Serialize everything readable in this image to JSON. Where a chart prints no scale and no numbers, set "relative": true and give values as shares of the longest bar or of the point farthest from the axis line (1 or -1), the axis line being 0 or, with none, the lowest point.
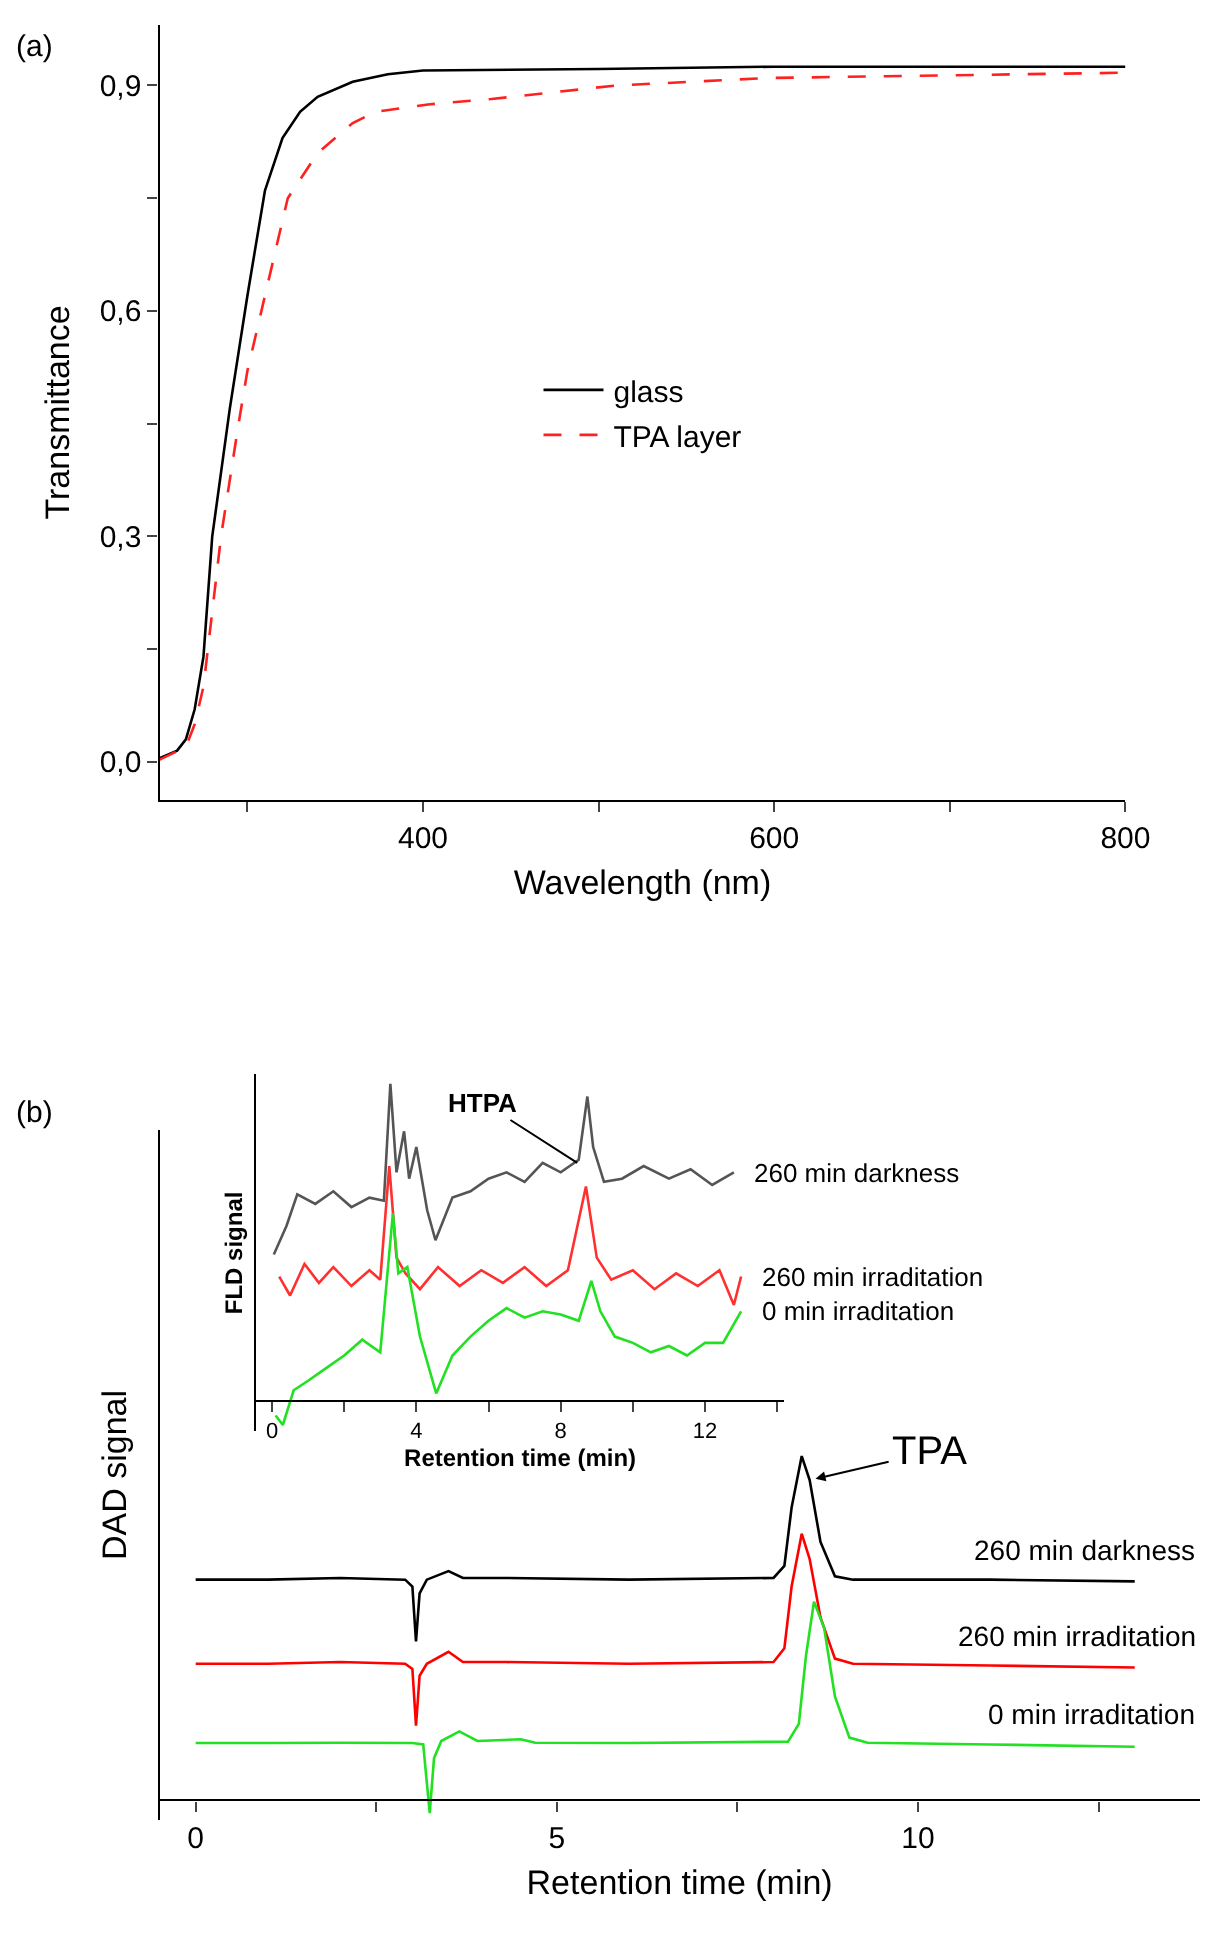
{
  "chart_data": [
    {
      "type": "line",
      "xlabel": "Wavelength (nm)",
      "ylabel": "Transmittance",
      "annotations": [
        "(a)"
      ],
      "xlim": [
        250,
        800
      ],
      "xticks": [
        {
          "value": 300,
          "label": null
        },
        400,
        {
          "value": 500,
          "label": null
        },
        600,
        {
          "value": 700,
          "label": null
        },
        800
      ],
      "ylim": [
        -0.05,
        0.98
      ],
      "yticks": [
        {
          "value": 0,
          "label": "0,0"
        },
        {
          "value": 0.15,
          "label": null
        },
        {
          "value": 0.3,
          "label": "0,3"
        },
        {
          "value": 0.45,
          "label": null
        },
        {
          "value": 0.6,
          "label": "0,6"
        },
        {
          "value": 0.75,
          "label": null
        },
        {
          "value": 0.9,
          "label": "0,9"
        }
      ],
      "legend": "center",
      "series": [
        {
          "name": "glass",
          "color": "#000000",
          "line_style": "solid",
          "x": [
            250,
            260,
            265,
            270,
            275,
            280,
            290,
            300,
            310,
            320,
            330,
            340,
            360,
            380,
            400,
            500,
            600,
            800
          ],
          "values": [
            0.005,
            0.015,
            0.03,
            0.07,
            0.14,
            0.3,
            0.47,
            0.62,
            0.76,
            0.83,
            0.865,
            0.885,
            0.905,
            0.915,
            0.92,
            0.922,
            0.925,
            0.925
          ]
        },
        {
          "name": "TPA layer",
          "color": "#ff2020",
          "line_style": "dashed",
          "x": [
            250,
            265,
            270,
            275,
            280,
            285,
            295,
            300,
            310,
            323,
            340,
            360,
            373,
            404,
            439,
            510,
            597,
            800
          ],
          "values": [
            0.003,
            0.02,
            0.05,
            0.1,
            0.2,
            0.3,
            0.45,
            0.52,
            0.62,
            0.75,
            0.81,
            0.85,
            0.865,
            0.875,
            0.882,
            0.9,
            0.91,
            0.917
          ]
        }
      ]
    },
    {
      "type": "line",
      "relative": true,
      "xlabel": "Retention time (min)",
      "ylabel": "DAD signal",
      "tick_labels": "x",
      "annotations": [
        "(b)",
        {
          "text": "TPA",
          "x": 8.5,
          "y": 0.93
        }
      ],
      "xlim": [
        -0.5,
        13.9
      ],
      "xticks": [
        0,
        {
          "value": 2.5,
          "label": null
        },
        5,
        {
          "value": 7.5,
          "label": null
        },
        10,
        {
          "value": 12.5,
          "label": null
        }
      ],
      "series": [
        {
          "name": "260 min darkness",
          "color": "#000000",
          "x": [
            0,
            1,
            2,
            2.9,
            3.0,
            3.05,
            3.1,
            3.2,
            3.5,
            3.7,
            4.3,
            6,
            8.0,
            8.15,
            8.25,
            8.39,
            8.5,
            8.65,
            8.85,
            9.1,
            11,
            13
          ],
          "values": [
            0.64,
            0.64,
            0.645,
            0.64,
            0.62,
            0.46,
            0.6,
            0.64,
            0.665,
            0.645,
            0.645,
            0.64,
            0.645,
            0.68,
            0.85,
            1.0,
            0.93,
            0.75,
            0.65,
            0.64,
            0.64,
            0.635
          ]
        },
        {
          "name": "260 min irraditation",
          "color": "#ff0000",
          "x": [
            0,
            1,
            2,
            2.9,
            3.0,
            3.05,
            3.1,
            3.2,
            3.5,
            3.7,
            4.3,
            6,
            8.0,
            8.15,
            8.25,
            8.39,
            8.5,
            8.65,
            8.85,
            9.1,
            11,
            13
          ],
          "values": [
            0.395,
            0.395,
            0.4,
            0.395,
            0.38,
            0.215,
            0.36,
            0.395,
            0.43,
            0.4,
            0.4,
            0.395,
            0.4,
            0.44,
            0.62,
            0.774,
            0.7,
            0.53,
            0.41,
            0.395,
            0.39,
            0.384
          ]
        },
        {
          "name": "0 min irraditation",
          "color": "#22e022",
          "x": [
            0,
            1,
            2,
            3.0,
            3.15,
            3.24,
            3.3,
            3.4,
            3.65,
            3.9,
            4.5,
            4.7,
            6,
            8.2,
            8.35,
            8.45,
            8.56,
            8.7,
            8.85,
            9.05,
            9.3,
            11,
            13
          ],
          "values": [
            0.164,
            0.164,
            0.165,
            0.164,
            0.16,
            -0.04,
            0.12,
            0.17,
            0.198,
            0.17,
            0.175,
            0.165,
            0.164,
            0.168,
            0.22,
            0.42,
            0.576,
            0.5,
            0.3,
            0.18,
            0.165,
            0.16,
            0.153
          ]
        }
      ]
    },
    {
      "type": "line",
      "relative": true,
      "xlabel": "Retention time (min)",
      "ylabel": "FLD signal",
      "tick_labels": "x",
      "annotations": [
        {
          "text": "HTPA",
          "x": 8.6,
          "y": 0.74
        }
      ],
      "xlim": [
        -0.45,
        14.2
      ],
      "xticks": [
        0,
        {
          "value": 2,
          "label": null
        },
        4,
        {
          "value": 6,
          "label": null
        },
        8,
        {
          "value": 10,
          "label": null
        },
        12,
        {
          "value": 14,
          "label": null
        }
      ],
      "series": [
        {
          "name": "260 min darkness",
          "color": "#555555",
          "x": [
            0.05,
            0.4,
            0.7,
            1.2,
            1.7,
            2.2,
            2.7,
            3.1,
            3.28,
            3.45,
            3.66,
            3.8,
            4.0,
            4.3,
            4.53,
            5.0,
            5.5,
            6.0,
            6.5,
            7.0,
            7.5,
            8.0,
            8.5,
            8.74,
            8.9,
            9.2,
            9.7,
            10.3,
            11.0,
            11.6,
            12.2,
            12.8
          ],
          "values": [
            0.46,
            0.55,
            0.65,
            0.62,
            0.66,
            0.61,
            0.64,
            0.63,
            1.0,
            0.72,
            0.85,
            0.7,
            0.8,
            0.6,
            0.505,
            0.64,
            0.66,
            0.7,
            0.72,
            0.69,
            0.75,
            0.72,
            0.76,
            0.96,
            0.8,
            0.69,
            0.7,
            0.74,
            0.7,
            0.73,
            0.68,
            0.72
          ]
        },
        {
          "name": "260 min irraditation",
          "color": "#ff3030",
          "x": [
            0.2,
            0.5,
            0.9,
            1.3,
            1.7,
            2.2,
            2.7,
            3.0,
            3.25,
            3.45,
            3.7,
            4.1,
            4.6,
            5.2,
            5.8,
            6.4,
            7.0,
            7.6,
            8.2,
            8.7,
            9.0,
            9.4,
            10.0,
            10.6,
            11.2,
            11.8,
            12.4,
            12.8,
            13.0
          ],
          "values": [
            0.39,
            0.33,
            0.43,
            0.37,
            0.42,
            0.36,
            0.41,
            0.38,
            0.74,
            0.45,
            0.4,
            0.35,
            0.42,
            0.36,
            0.41,
            0.37,
            0.42,
            0.36,
            0.41,
            0.675,
            0.45,
            0.38,
            0.41,
            0.35,
            0.4,
            0.36,
            0.41,
            0.3,
            0.39
          ]
        },
        {
          "name": "0 min irraditation",
          "color": "#22e022",
          "x": [
            0.1,
            0.3,
            0.6,
            1.0,
            1.5,
            2.0,
            2.5,
            3.0,
            3.35,
            3.5,
            3.75,
            4.1,
            4.55,
            5.0,
            5.5,
            6.0,
            6.5,
            7.0,
            7.5,
            8.0,
            8.5,
            8.85,
            9.1,
            9.5,
            10.0,
            10.5,
            11.0,
            11.5,
            12.0,
            12.5,
            13.0
          ],
          "values": [
            -0.05,
            -0.08,
            0.03,
            0.06,
            0.1,
            0.14,
            0.19,
            0.15,
            0.59,
            0.4,
            0.42,
            0.2,
            0.02,
            0.14,
            0.2,
            0.25,
            0.29,
            0.26,
            0.28,
            0.27,
            0.25,
            0.376,
            0.28,
            0.2,
            0.18,
            0.15,
            0.17,
            0.14,
            0.18,
            0.18,
            0.28
          ]
        }
      ]
    }
  ]
}
